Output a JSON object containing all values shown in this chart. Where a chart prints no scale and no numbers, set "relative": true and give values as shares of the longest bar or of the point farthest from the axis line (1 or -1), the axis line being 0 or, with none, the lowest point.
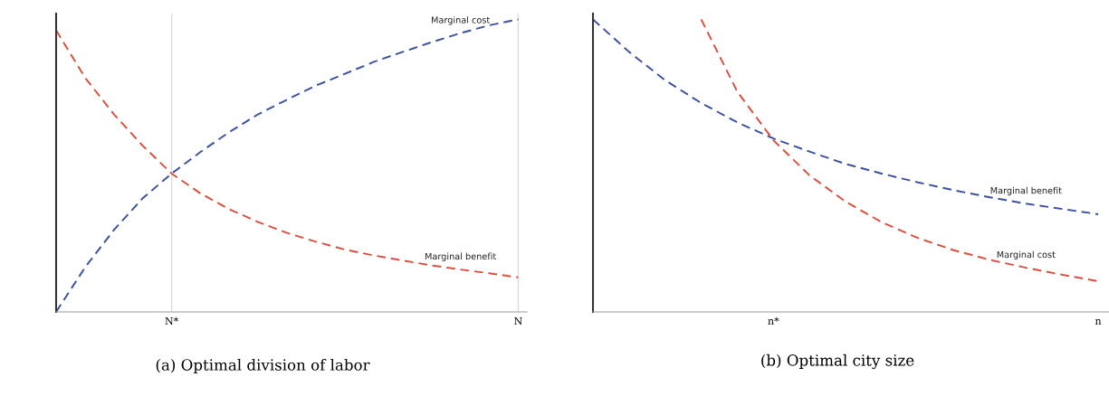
{
  "chart_data": [
    {
      "type": "line",
      "relative": true,
      "grid": "x",
      "line_style": "dashed",
      "legend": false,
      "categories": [
        null,
        null,
        null,
        null,
        "N*",
        null,
        null,
        null,
        null,
        null,
        null,
        null,
        null,
        null,
        null,
        null,
        "N"
      ],
      "series": [
        {
          "name": "Marginal cost",
          "color": "#3b4fa3",
          "values": [
            0,
            0.152,
            0.28,
            0.389,
            0.473,
            0.547,
            0.615,
            0.676,
            0.726,
            0.774,
            0.814,
            0.855,
            0.889,
            0.922,
            0.953,
            0.98,
            1
          ]
        },
        {
          "name": "Marginal benefit",
          "color": "#d9503f",
          "values": [
            0.963,
            0.801,
            0.676,
            0.568,
            0.473,
            0.405,
            0.351,
            0.307,
            0.27,
            0.24,
            0.213,
            0.193,
            0.176,
            0.159,
            0.145,
            0.132,
            0.118
          ]
        }
      ],
      "annotations": [
        "(a) Optimal division of labor"
      ]
    },
    {
      "type": "line",
      "relative": true,
      "grid": false,
      "line_style": "dashed",
      "legend": false,
      "categories": [
        null,
        null,
        null,
        null,
        null,
        "n*",
        null,
        null,
        null,
        null,
        null,
        null,
        null,
        null,
        "n"
      ],
      "series": [
        {
          "name": "Marginal benefit",
          "color": "#3b4fa3",
          "values": [
            1,
            0.889,
            0.792,
            0.714,
            0.648,
            0.593,
            0.548,
            0.506,
            0.473,
            0.443,
            0.416,
            0.392,
            0.37,
            0.352,
            0.334
          ]
        },
        {
          "name": "Marginal cost",
          "color": "#d9503f",
          "values": [
            null,
            null,
            null,
            1,
            0.753,
            0.587,
            0.467,
            0.377,
            0.307,
            0.253,
            0.211,
            0.178,
            0.151,
            0.127,
            0.105
          ]
        }
      ],
      "annotations": [
        "(b) Optimal city size"
      ]
    }
  ]
}
